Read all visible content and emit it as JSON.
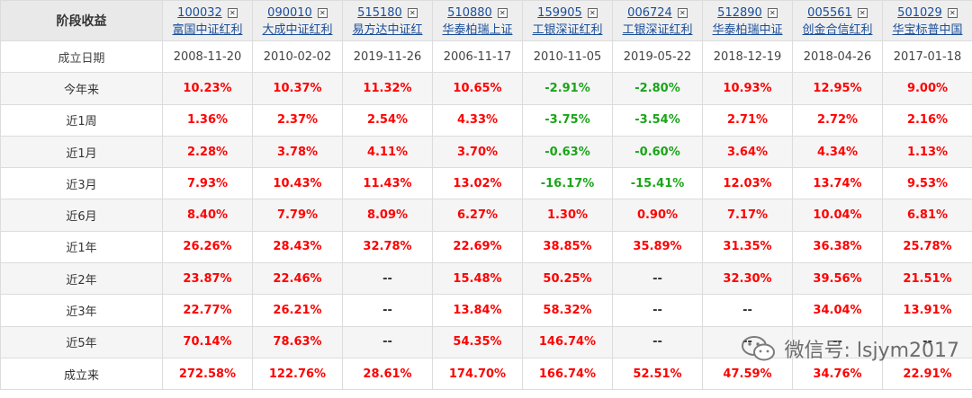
{
  "header": {
    "corner": "阶段收益",
    "funds": [
      {
        "code": "100032",
        "name": "富国中证红利"
      },
      {
        "code": "090010",
        "name": "大成中证红利"
      },
      {
        "code": "515180",
        "name": "易方达中证红"
      },
      {
        "code": "510880",
        "name": "华泰柏瑞上证"
      },
      {
        "code": "159905",
        "name": "工银深证红利"
      },
      {
        "code": "006724",
        "name": "工银深证红利"
      },
      {
        "code": "512890",
        "name": "华泰柏瑞中证"
      },
      {
        "code": "005561",
        "name": "创金合信红利"
      },
      {
        "code": "501029",
        "name": "华宝标普中国"
      }
    ],
    "close_symbol": "✕"
  },
  "rows": [
    {
      "label": "成立日期",
      "values": [
        "2008-11-20",
        "2010-02-02",
        "2019-11-26",
        "2006-11-17",
        "2010-11-05",
        "2019-05-22",
        "2018-12-19",
        "2018-04-26",
        "2017-01-18"
      ]
    },
    {
      "label": "今年来",
      "values": [
        "10.23%",
        "10.37%",
        "11.32%",
        "10.65%",
        "-2.91%",
        "-2.80%",
        "10.93%",
        "12.95%",
        "9.00%"
      ]
    },
    {
      "label": "近1周",
      "values": [
        "1.36%",
        "2.37%",
        "2.54%",
        "4.33%",
        "-3.75%",
        "-3.54%",
        "2.71%",
        "2.72%",
        "2.16%"
      ]
    },
    {
      "label": "近1月",
      "values": [
        "2.28%",
        "3.78%",
        "4.11%",
        "3.70%",
        "-0.63%",
        "-0.60%",
        "3.64%",
        "4.34%",
        "1.13%"
      ]
    },
    {
      "label": "近3月",
      "values": [
        "7.93%",
        "10.43%",
        "11.43%",
        "13.02%",
        "-16.17%",
        "-15.41%",
        "12.03%",
        "13.74%",
        "9.53%"
      ]
    },
    {
      "label": "近6月",
      "values": [
        "8.40%",
        "7.79%",
        "8.09%",
        "6.27%",
        "1.30%",
        "0.90%",
        "7.17%",
        "10.04%",
        "6.81%"
      ]
    },
    {
      "label": "近1年",
      "values": [
        "26.26%",
        "28.43%",
        "32.78%",
        "22.69%",
        "38.85%",
        "35.89%",
        "31.35%",
        "36.38%",
        "25.78%"
      ]
    },
    {
      "label": "近2年",
      "values": [
        "23.87%",
        "22.46%",
        "--",
        "15.48%",
        "50.25%",
        "--",
        "32.30%",
        "39.56%",
        "21.51%"
      ]
    },
    {
      "label": "近3年",
      "values": [
        "22.77%",
        "26.21%",
        "--",
        "13.84%",
        "58.32%",
        "--",
        "--",
        "34.04%",
        "13.91%"
      ]
    },
    {
      "label": "近5年",
      "values": [
        "70.14%",
        "78.63%",
        "--",
        "54.35%",
        "146.74%",
        "--",
        "--",
        "--",
        "--"
      ]
    },
    {
      "label": "成立来",
      "values": [
        "272.58%",
        "122.76%",
        "28.61%",
        "174.70%",
        "166.74%",
        "52.51%",
        "47.59%",
        "34.76%",
        "22.91%"
      ]
    }
  ],
  "watermark": {
    "text": "微信号: lsjym2017",
    "icon": "wechat-icon"
  },
  "colors": {
    "positive": "#ff0000",
    "negative": "#1aa51a",
    "link": "#1b4e9a"
  }
}
